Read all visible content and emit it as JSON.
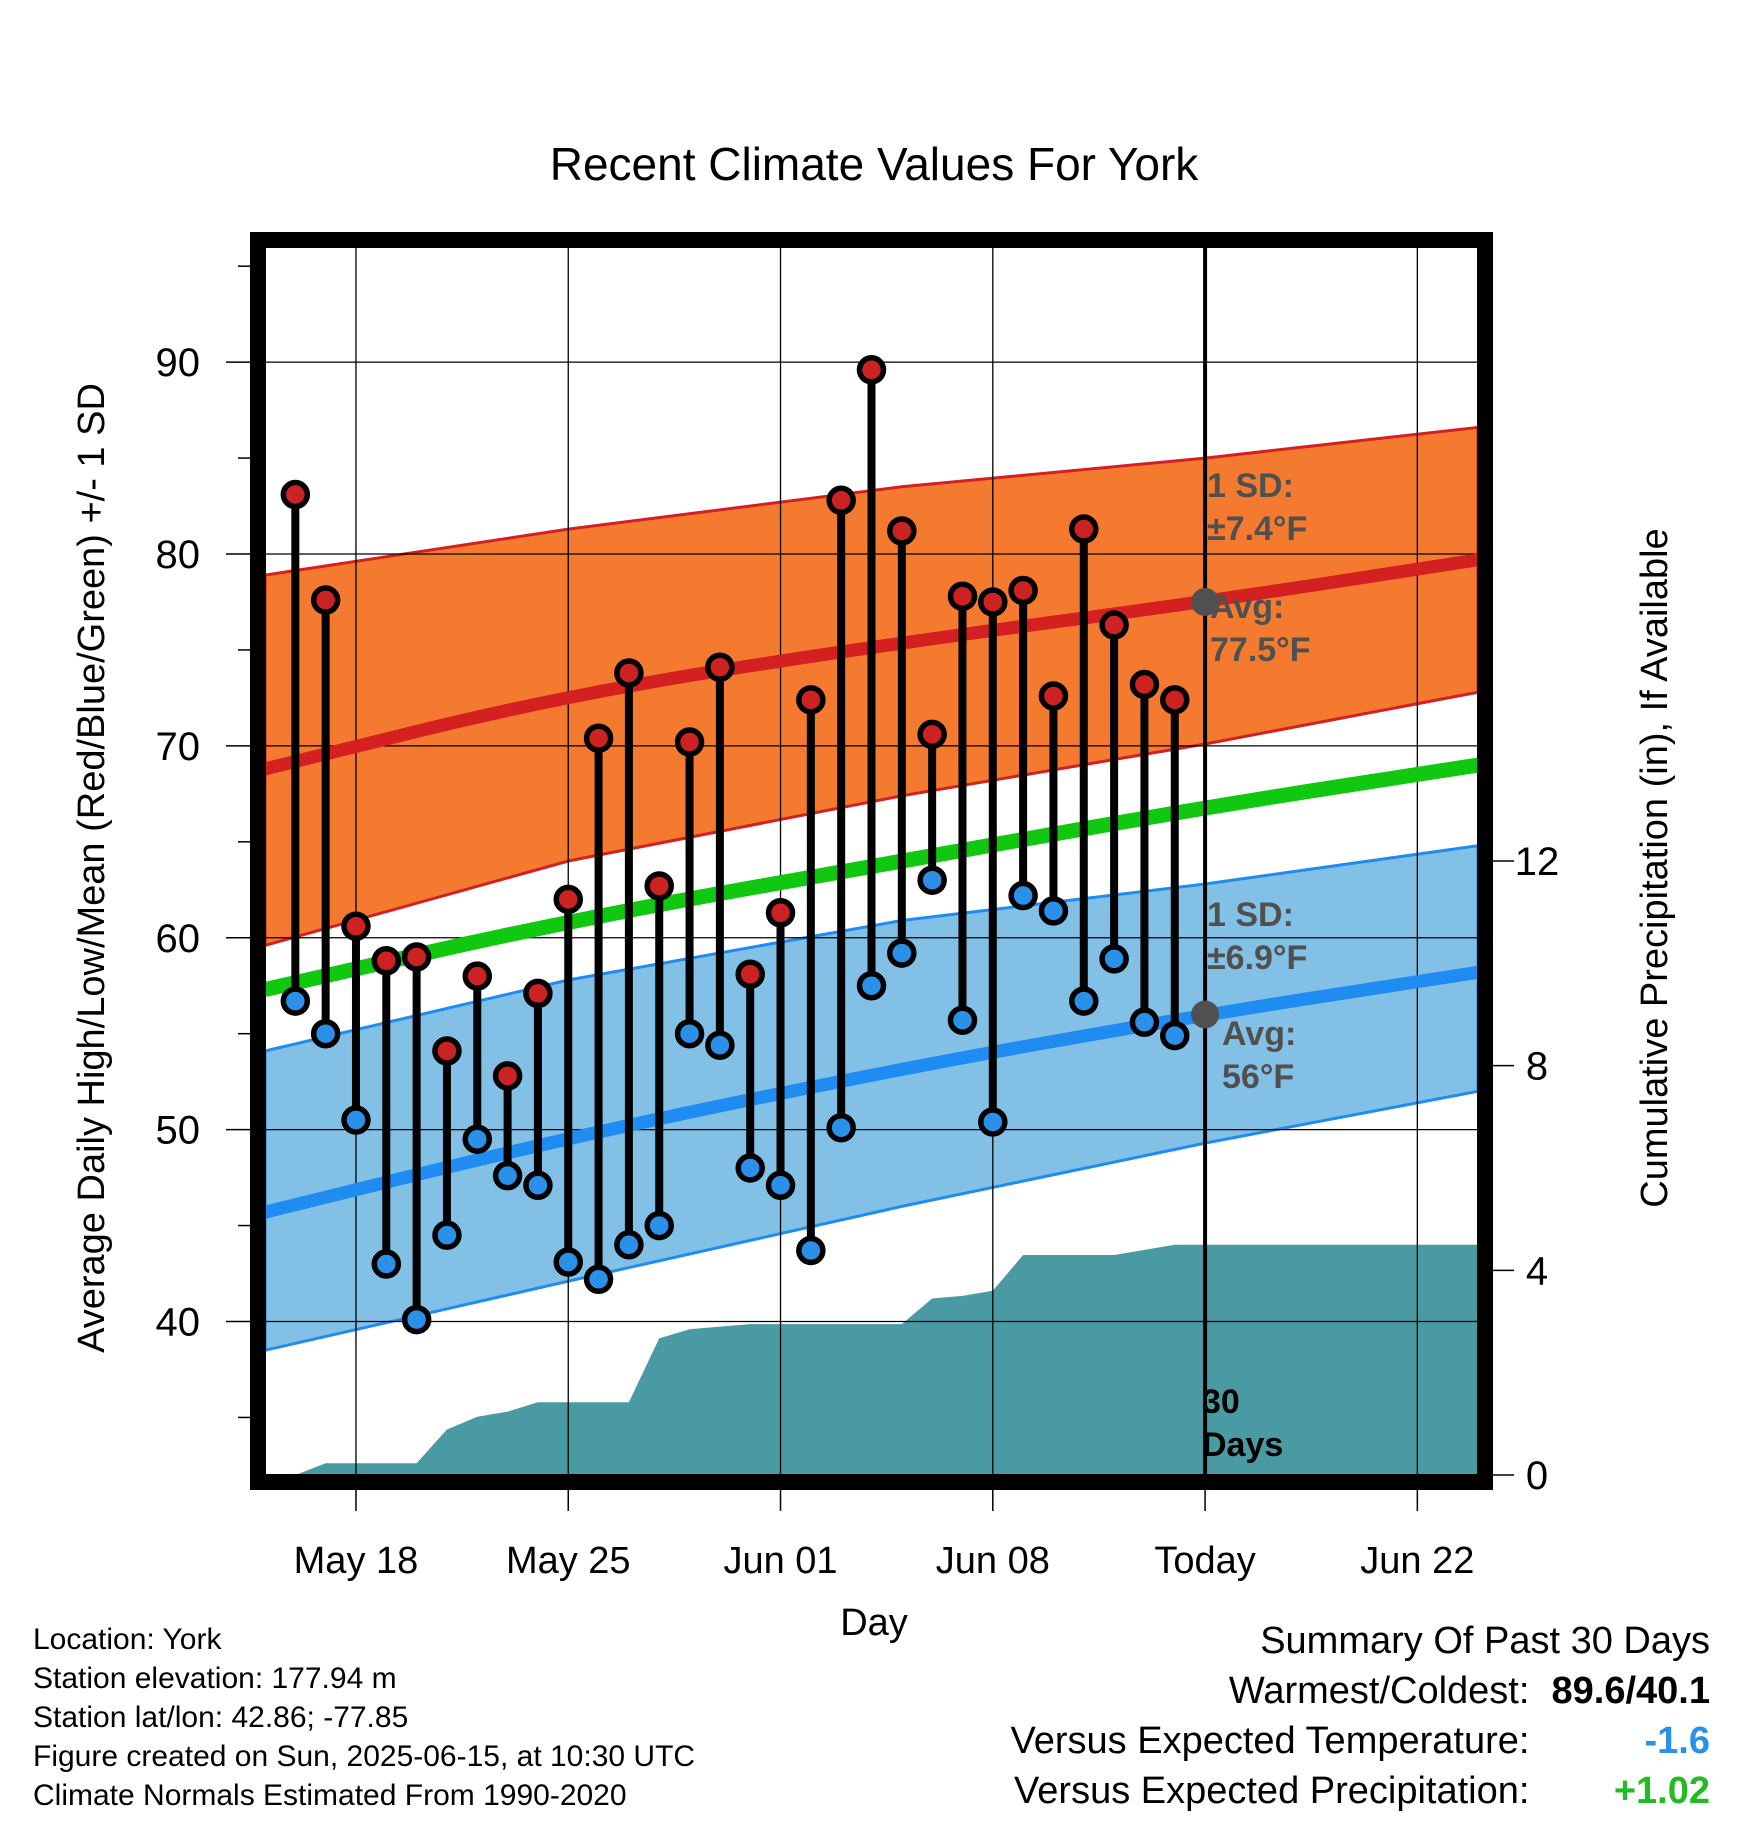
{
  "page": {
    "title": "Recent Climate Values For York"
  },
  "axes": {
    "ylabel_left": "Average Daily High/Low/Mean (Red/Blue/Green) +/- 1 SD",
    "ylabel_right": "Cumulative Precipitation (in), If Available",
    "xlabel": "Day",
    "xticks": [
      "May 18",
      "May 25",
      "Jun 01",
      "Jun 08",
      "Today",
      "Jun 22"
    ],
    "yticks_left": [
      "40",
      "50",
      "60",
      "70",
      "80",
      "90"
    ],
    "yticks_right": [
      "0",
      "4",
      "8",
      "12"
    ]
  },
  "annotations": {
    "high_sd_line1": "1 SD:",
    "high_sd_line2": "±7.4°F",
    "high_avg_line1": "Avg:",
    "high_avg_line2": "77.5°F",
    "low_sd_line1": "1 SD:",
    "low_sd_line2": "±6.9°F",
    "low_avg_line1": "Avg:",
    "low_avg_line2": "56°F",
    "window_line1": "30",
    "window_line2": "Days"
  },
  "info": {
    "location": "Location: York",
    "elevation": "Station elevation: 177.94 m",
    "latlon": "Station lat/lon: 42.86; -77.85",
    "created": "Figure created on Sun, 2025-06-15, at 10:30 UTC",
    "normals": "Climate Normals Estimated From 1990-2020"
  },
  "summary": {
    "heading": "Summary Of Past 30 Days",
    "warmest_label": "Warmest/Coldest:",
    "warmest_value": "89.6/40.1",
    "temp_label": "Versus Expected Temperature:",
    "temp_value": "-1.6",
    "precip_label": "Versus Expected Precipitation:",
    "precip_value": "+1.02"
  },
  "colors": {
    "high_band": "#f47a30",
    "high_line": "#d42020",
    "low_band": "#82c0e6",
    "low_line": "#1e8cf0",
    "mean_line": "#10c810",
    "precip_fill": "#4a9aa4",
    "high_marker": "#cc2222",
    "low_marker": "#2a90e8",
    "annotation": "#505050",
    "temp_value": "#2a90e8",
    "precip_value": "#22bb22"
  },
  "chart_data": {
    "type": "line",
    "title": "Recent Climate Values For York",
    "xlabel": "Day",
    "ylabel": "Average Daily High/Low/Mean (Red/Blue/Green) +/- 1 SD",
    "y2label": "Cumulative Precipitation (in), If Available",
    "x_range": [
      "2025-05-15",
      "2025-06-24"
    ],
    "ylim": [
      32,
      96
    ],
    "y2lim": [
      0,
      24
    ],
    "today": "2025-06-15",
    "grid": true,
    "daily_observations": {
      "dates": [
        "2025-05-16",
        "2025-05-17",
        "2025-05-18",
        "2025-05-19",
        "2025-05-20",
        "2025-05-21",
        "2025-05-22",
        "2025-05-23",
        "2025-05-24",
        "2025-05-25",
        "2025-05-26",
        "2025-05-27",
        "2025-05-28",
        "2025-05-29",
        "2025-05-30",
        "2025-05-31",
        "2025-06-01",
        "2025-06-02",
        "2025-06-03",
        "2025-06-04",
        "2025-06-05",
        "2025-06-06",
        "2025-06-07",
        "2025-06-08",
        "2025-06-09",
        "2025-06-10",
        "2025-06-11",
        "2025-06-12",
        "2025-06-13",
        "2025-06-14"
      ],
      "high": [
        83.1,
        77.6,
        60.6,
        58.8,
        59.0,
        54.1,
        58.0,
        52.8,
        57.1,
        62.0,
        70.4,
        73.8,
        62.7,
        70.2,
        74.1,
        58.1,
        61.3,
        72.4,
        82.8,
        89.6,
        81.2,
        70.6,
        77.8,
        77.5,
        78.1,
        72.6,
        81.3,
        76.3,
        73.2,
        72.4
      ],
      "low": [
        56.7,
        55.0,
        50.5,
        43.0,
        40.1,
        44.5,
        49.5,
        47.6,
        47.1,
        43.1,
        42.2,
        44.0,
        45.0,
        55.0,
        54.4,
        48.0,
        47.1,
        43.7,
        50.1,
        57.5,
        59.2,
        63.0,
        55.7,
        50.4,
        62.2,
        61.4,
        56.7,
        58.9,
        55.6,
        54.9
      ]
    },
    "normals": {
      "dates": [
        "2025-05-15",
        "2025-05-25",
        "2025-06-05",
        "2025-06-15",
        "2025-06-24"
      ],
      "high_mean": [
        68.8,
        72.7,
        75.4,
        77.5,
        79.7
      ],
      "high_upper": [
        78.9,
        81.3,
        83.5,
        85.0,
        86.6
      ],
      "high_lower": [
        59.6,
        64.0,
        67.4,
        70.1,
        72.8
      ],
      "mean": [
        57.3,
        60.9,
        64.0,
        66.8,
        69.0
      ],
      "low_mean": [
        45.7,
        49.6,
        53.2,
        56.0,
        58.2
      ],
      "low_upper": [
        54.1,
        57.8,
        60.9,
        62.8,
        64.8
      ],
      "low_lower": [
        38.5,
        42.1,
        46.0,
        49.3,
        52.0
      ]
    },
    "precipitation_cumulative": {
      "dates": [
        "2025-05-16",
        "2025-05-17",
        "2025-05-18",
        "2025-05-19",
        "2025-05-20",
        "2025-05-21",
        "2025-05-22",
        "2025-05-23",
        "2025-05-24",
        "2025-05-25",
        "2025-05-26",
        "2025-05-27",
        "2025-05-28",
        "2025-05-29",
        "2025-05-30",
        "2025-05-31",
        "2025-06-01",
        "2025-06-02",
        "2025-06-03",
        "2025-06-04",
        "2025-06-05",
        "2025-06-06",
        "2025-06-07",
        "2025-06-08",
        "2025-06-09",
        "2025-06-10",
        "2025-06-11",
        "2025-06-12",
        "2025-06-13",
        "2025-06-14",
        "2025-06-24"
      ],
      "values": [
        0.0,
        0.23,
        0.23,
        0.23,
        0.23,
        0.89,
        1.14,
        1.24,
        1.42,
        1.42,
        1.42,
        1.42,
        2.67,
        2.85,
        2.9,
        2.95,
        2.95,
        2.95,
        2.95,
        2.95,
        2.95,
        3.45,
        3.5,
        3.6,
        4.3,
        4.3,
        4.3,
        4.3,
        4.4,
        4.5,
        4.5
      ]
    }
  }
}
